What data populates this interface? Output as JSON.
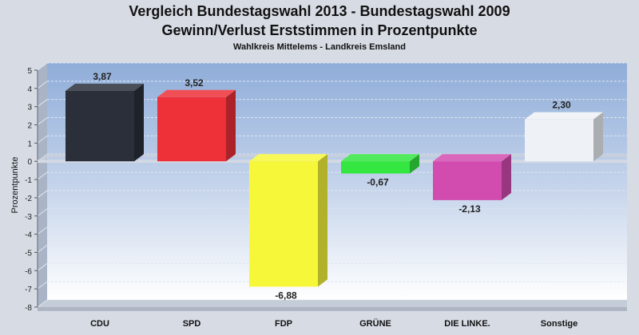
{
  "chart_data": {
    "type": "bar",
    "title": "Vergleich Bundestagswahl 2013 - Bundestagswahl 2009",
    "subtitle": "Gewinn/Verlust Erststimmen in Prozentpunkte",
    "caption": "Wahlkreis Mittelems - Landkreis Emsland",
    "ylabel": "Prozentpunkte",
    "xlabel": "",
    "ylim": [
      -8,
      5
    ],
    "yticks": [
      "5",
      "4",
      "3",
      "2",
      "1",
      "0",
      "-1",
      "-2",
      "-3",
      "-4",
      "-5",
      "-6",
      "-7",
      "-8"
    ],
    "categories": [
      "CDU",
      "SPD",
      "FDP",
      "GRÜNE",
      "DIE LINKE.",
      "Sonstige"
    ],
    "values": [
      3.87,
      3.52,
      -6.88,
      -0.67,
      -2.13,
      2.3
    ],
    "value_labels": [
      "3,87",
      "3,52",
      "-6,88",
      "-0,67",
      "-2,13",
      "2,30"
    ],
    "colors": [
      "#2a2f3a",
      "#ee3038",
      "#f7f73a",
      "#33e640",
      "#d24cb0",
      "#eef1f6"
    ],
    "grid": true,
    "legend": "none"
  }
}
